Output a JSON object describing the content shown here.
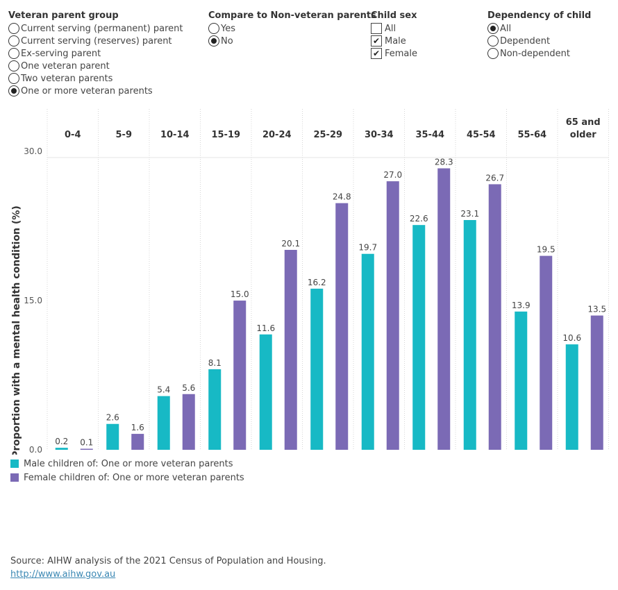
{
  "filters": {
    "veteran_parent_group": {
      "title": "Veteran parent group",
      "options": [
        {
          "label": "Current serving (permanent) parent",
          "selected": false
        },
        {
          "label": "Current serving (reserves) parent",
          "selected": false
        },
        {
          "label": "Ex-serving parent",
          "selected": false
        },
        {
          "label": "One veteran parent",
          "selected": false
        },
        {
          "label": "Two veteran parents",
          "selected": false
        },
        {
          "label": "One or more veteran parents",
          "selected": true
        }
      ]
    },
    "compare": {
      "title": "Compare to Non-veteran parents",
      "options": [
        {
          "label": "Yes",
          "selected": false
        },
        {
          "label": "No",
          "selected": true
        }
      ]
    },
    "child_sex": {
      "title": "Child sex",
      "options": [
        {
          "label": "All",
          "checked": false
        },
        {
          "label": "Male",
          "checked": true
        },
        {
          "label": "Female",
          "checked": true
        }
      ]
    },
    "dependency": {
      "title": "Dependency of child",
      "options": [
        {
          "label": "All",
          "selected": true
        },
        {
          "label": "Dependent",
          "selected": false
        },
        {
          "label": "Non-dependent",
          "selected": false
        }
      ]
    }
  },
  "chart_data": {
    "type": "bar",
    "ylabel": "Proportion with a mental health condition (%)",
    "ylim": [
      0,
      33.5
    ],
    "yticks": [
      0,
      15,
      30
    ],
    "ytick_labels": [
      "0.0",
      "15.0",
      "30.0"
    ],
    "grid": false,
    "categories": [
      [
        "0-4"
      ],
      [
        "5-9"
      ],
      [
        "10-14"
      ],
      [
        "15-19"
      ],
      [
        "20-24"
      ],
      [
        "25-29"
      ],
      [
        "30-34"
      ],
      [
        "35-44"
      ],
      [
        "45-54"
      ],
      [
        "55-64"
      ],
      [
        "65 and",
        "older"
      ]
    ],
    "series": [
      {
        "name": "Male children of: One or more veteran parents",
        "color": "#17b9c5",
        "values": [
          0.2,
          2.6,
          5.4,
          8.1,
          11.6,
          16.2,
          19.7,
          22.6,
          23.1,
          13.9,
          10.6
        ],
        "labels": [
          "0.2",
          "2.6",
          "5.4",
          "8.1",
          "11.6",
          "16.2",
          "19.7",
          "22.6",
          "23.1",
          "13.9",
          "10.6"
        ]
      },
      {
        "name": "Female children of: One or more veteran parents",
        "color": "#7b6ab5",
        "values": [
          0.1,
          1.6,
          5.6,
          15.0,
          20.1,
          24.8,
          27.0,
          28.3,
          26.7,
          19.5,
          13.5
        ],
        "labels": [
          "0.1",
          "1.6",
          "5.6",
          "15.0",
          "20.1",
          "24.8",
          "27.0",
          "28.3",
          "26.7",
          "19.5",
          "13.5"
        ]
      }
    ],
    "legend_position": "bottom-left"
  },
  "footer": {
    "source": "Source: AIHW analysis of the 2021 Census of Population and Housing.",
    "link": "http://www.aihw.gov.au"
  }
}
